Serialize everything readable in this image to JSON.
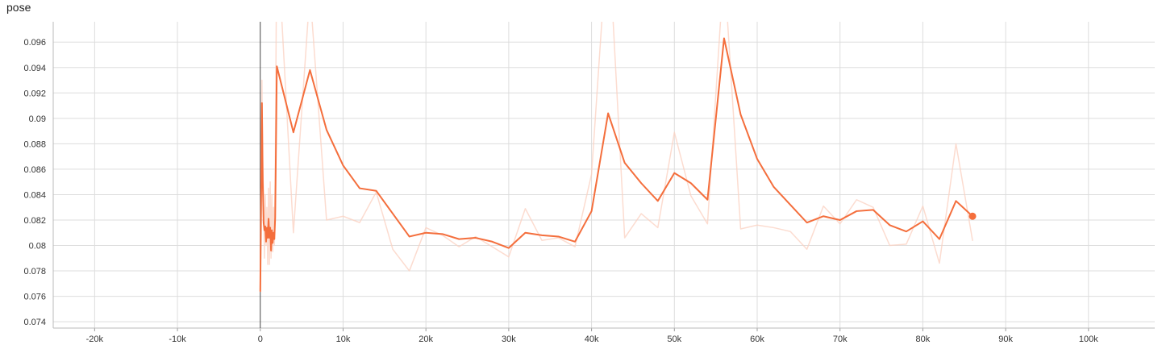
{
  "chart_data": {
    "type": "line",
    "title": "pose",
    "xlabel": "",
    "ylabel": "",
    "xlim": [
      -25000,
      108000
    ],
    "ylim": [
      0.0735,
      0.0976
    ],
    "x_ticks": [
      -20000,
      -10000,
      0,
      10000,
      20000,
      30000,
      40000,
      50000,
      60000,
      70000,
      80000,
      90000,
      100000
    ],
    "x_tick_labels": [
      "-20k",
      "-10k",
      "0",
      "10k",
      "20k",
      "30k",
      "40k",
      "50k",
      "60k",
      "70k",
      "80k",
      "90k",
      "100k"
    ],
    "y_ticks": [
      0.074,
      0.076,
      0.078,
      0.08,
      0.082,
      0.084,
      0.086,
      0.088,
      0.09,
      0.092,
      0.094,
      0.096
    ],
    "y_tick_labels": [
      "0.074",
      "0.076",
      "0.078",
      "0.08",
      "0.082",
      "0.084",
      "0.086",
      "0.088",
      "0.09",
      "0.092",
      "0.094",
      "0.096"
    ],
    "grid": true,
    "colors": {
      "smoothed": "#f46e3c",
      "raw": "#fbd0c0",
      "grid": "#dddddd",
      "axis": "#444444"
    },
    "series": [
      {
        "role": "raw",
        "x": [
          0,
          100,
          200,
          300,
          400,
          500,
          600,
          700,
          800,
          900,
          1000,
          1100,
          1200,
          1300,
          1400,
          1500,
          1600,
          1700,
          1800,
          2000,
          4000,
          6000,
          8000,
          10000,
          12000,
          14000,
          16000,
          18000,
          20000,
          22000,
          24000,
          26000,
          28000,
          30000,
          32000,
          34000,
          36000,
          38000,
          40000,
          42000,
          44000,
          46000,
          48000,
          50000,
          52000,
          54000,
          56000,
          58000,
          60000,
          62000,
          64000,
          66000,
          68000,
          70000,
          72000,
          74000,
          76000,
          78000,
          80000,
          82000,
          84000,
          86000
        ],
        "y": [
          0.0765,
          0.085,
          0.093,
          0.086,
          0.084,
          0.079,
          0.084,
          0.08,
          0.083,
          0.0785,
          0.0845,
          0.0785,
          0.085,
          0.079,
          0.084,
          0.0795,
          0.083,
          0.08,
          0.085,
          0.105,
          0.081,
          0.1,
          0.082,
          0.0823,
          0.0818,
          0.0842,
          0.0797,
          0.078,
          0.0814,
          0.0808,
          0.0799,
          0.0807,
          0.0799,
          0.0791,
          0.0829,
          0.0804,
          0.0806,
          0.0799,
          0.0856,
          0.105,
          0.0806,
          0.0825,
          0.0814,
          0.0889,
          0.0839,
          0.0817,
          0.102,
          0.0813,
          0.0816,
          0.0814,
          0.0811,
          0.0797,
          0.0831,
          0.0817,
          0.0836,
          0.083,
          0.08,
          0.0801,
          0.0831,
          0.0786,
          0.088,
          0.0804
        ]
      },
      {
        "role": "smoothed",
        "x": [
          0,
          100,
          200,
          300,
          400,
          500,
          600,
          700,
          800,
          900,
          1000,
          1100,
          1200,
          1300,
          1400,
          1500,
          1600,
          1700,
          1800,
          2000,
          4000,
          6000,
          8000,
          10000,
          12000,
          14000,
          16000,
          18000,
          20000,
          22000,
          24000,
          26000,
          28000,
          30000,
          32000,
          34000,
          36000,
          38000,
          40000,
          42000,
          44000,
          46000,
          48000,
          50000,
          52000,
          54000,
          56000,
          58000,
          60000,
          62000,
          64000,
          66000,
          68000,
          70000,
          72000,
          74000,
          76000,
          78000,
          80000,
          82000,
          84000,
          86000
        ],
        "y": [
          0.0764,
          0.083,
          0.0912,
          0.085,
          0.0818,
          0.0812,
          0.0815,
          0.0803,
          0.0814,
          0.0806,
          0.0821,
          0.0806,
          0.0814,
          0.0796,
          0.0812,
          0.0802,
          0.081,
          0.0805,
          0.0822,
          0.0941,
          0.0889,
          0.0938,
          0.0891,
          0.0863,
          0.0845,
          0.0843,
          0.0825,
          0.0807,
          0.081,
          0.0809,
          0.0805,
          0.0806,
          0.0803,
          0.0798,
          0.081,
          0.0808,
          0.0807,
          0.0803,
          0.0827,
          0.0904,
          0.0865,
          0.0849,
          0.0835,
          0.0857,
          0.0849,
          0.0836,
          0.0963,
          0.0903,
          0.0868,
          0.0846,
          0.0832,
          0.0818,
          0.0823,
          0.082,
          0.0827,
          0.0828,
          0.0816,
          0.0811,
          0.0819,
          0.0805,
          0.0835,
          0.0823
        ]
      }
    ]
  }
}
